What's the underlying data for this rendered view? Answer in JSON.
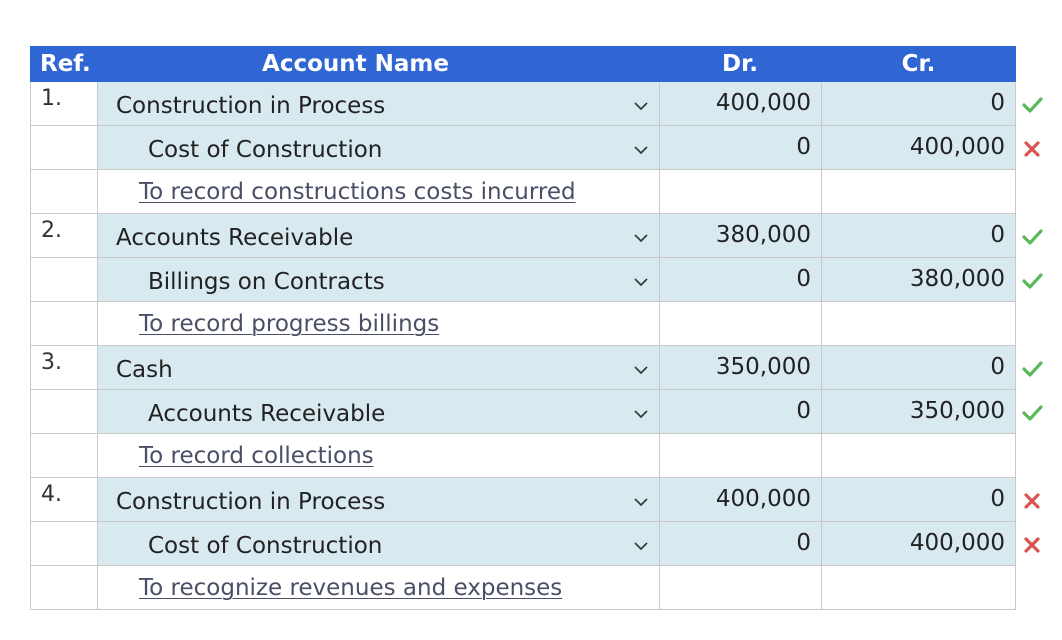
{
  "headers": {
    "ref": "Ref.",
    "account": "Account Name",
    "dr": "Dr.",
    "cr": "Cr."
  },
  "entries": [
    {
      "ref": "1.",
      "debit": {
        "account": "Construction in Process",
        "dr": "400,000",
        "cr": "0",
        "mark": "check-icon"
      },
      "credit": {
        "account": "Cost of Construction",
        "dr": "0",
        "cr": "400,000",
        "mark": "cross-icon"
      },
      "description": "To record constructions costs incurred"
    },
    {
      "ref": "2.",
      "debit": {
        "account": "Accounts Receivable",
        "dr": "380,000",
        "cr": "0",
        "mark": "check-icon"
      },
      "credit": {
        "account": "Billings on Contracts",
        "dr": "0",
        "cr": "380,000",
        "mark": "check-icon"
      },
      "description": "To record progress billings"
    },
    {
      "ref": "3.",
      "debit": {
        "account": "Cash",
        "dr": "350,000",
        "cr": "0",
        "mark": "check-icon"
      },
      "credit": {
        "account": "Accounts Receivable",
        "dr": "0",
        "cr": "350,000",
        "mark": "check-icon"
      },
      "description": "To record collections"
    },
    {
      "ref": "4.",
      "debit": {
        "account": "Construction in Process",
        "dr": "400,000",
        "cr": "0",
        "mark": "cross-icon"
      },
      "credit": {
        "account": "Cost of Construction",
        "dr": "0",
        "cr": "400,000",
        "mark": "cross-icon"
      },
      "description": "To recognize revenues and expenses"
    }
  ],
  "colors": {
    "header_bg": "#2f66d4",
    "row_bg": "#d9e9f0",
    "check": "#4caf50",
    "cross": "#d9534f"
  }
}
